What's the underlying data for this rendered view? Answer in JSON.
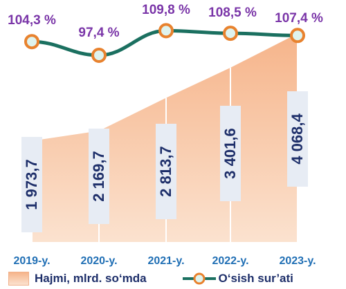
{
  "chart_data": {
    "type": "area",
    "categories": [
      "2019-y.",
      "2020-y.",
      "2021-y.",
      "2022-y.",
      "2023-y."
    ],
    "series": [
      {
        "name": "Hajmi, mlrd. so‘mda",
        "type": "area",
        "values": [
          1973.7,
          2169.7,
          2813.7,
          3401.6,
          4068.4
        ],
        "labels": [
          "1 973,7",
          "2 169,7",
          "2 813,7",
          "3 401,6",
          "4 068,4"
        ]
      },
      {
        "name": "O‘sish sur’ati",
        "type": "line",
        "values": [
          104.3,
          97.4,
          109.8,
          108.5,
          107.4
        ],
        "labels": [
          "104,3 %",
          "97,4 %",
          "109,8 %",
          "108,5 %",
          "107,4 %"
        ]
      }
    ],
    "legend_position": "bottom",
    "grid": false,
    "colors": {
      "area_top": "#f6b48a",
      "area_bottom": "#fbe2cf",
      "area_edge": "#ffffff",
      "line": "#1b7060",
      "marker_fill": "#dff3ee",
      "marker_edge": "#e8822e",
      "growth_label": "#7a35a8",
      "value_label": "#1e2f6a",
      "label_box": "#e7ecf4",
      "category_label": "#1f6eb4"
    }
  }
}
